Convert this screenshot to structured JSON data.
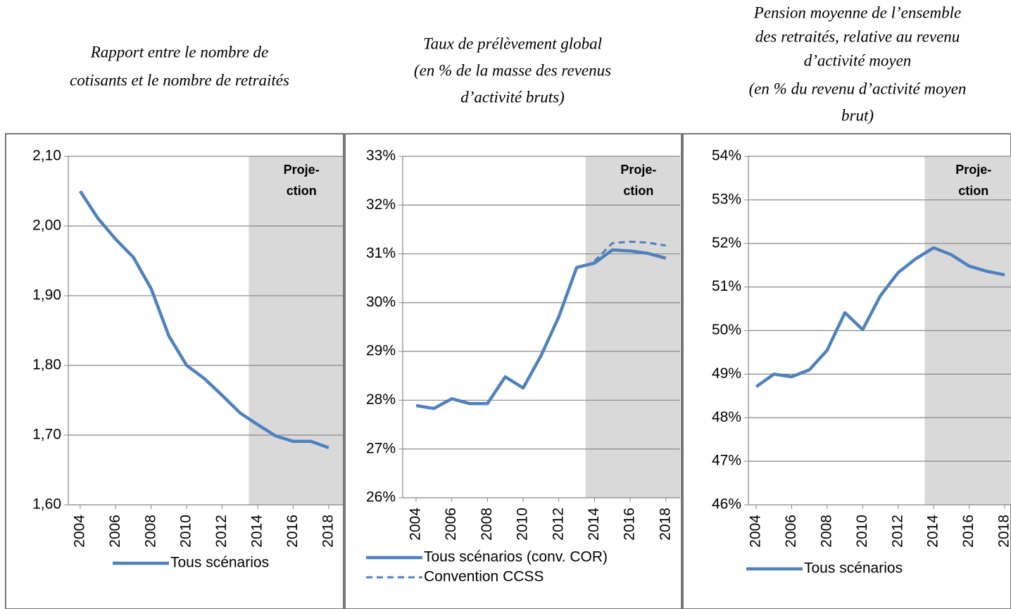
{
  "chart_data": [
    {
      "type": "line",
      "title": [
        "Rapport entre le nombre de",
        "cotisants et le nombre de retraités"
      ],
      "x": [
        2004,
        2005,
        2006,
        2007,
        2008,
        2009,
        2010,
        2011,
        2012,
        2013,
        2014,
        2015,
        2016,
        2017,
        2018
      ],
      "xlim": [
        2003.33,
        2018.8
      ],
      "xticks": [
        2004,
        2006,
        2008,
        2010,
        2012,
        2014,
        2016,
        2018
      ],
      "ylim": [
        1.6,
        2.1
      ],
      "yticks": [
        {
          "value": 1.6,
          "label": "1,60"
        },
        {
          "value": 1.7,
          "label": "1,70"
        },
        {
          "value": 1.8,
          "label": "1,80"
        },
        {
          "value": 1.9,
          "label": "1,90"
        },
        {
          "value": 2.0,
          "label": "2,00"
        },
        {
          "value": 2.1,
          "label": "2,10"
        }
      ],
      "grid": true,
      "annotation": {
        "text": [
          "Proje-",
          "ction"
        ],
        "shade_start": 2013.5
      },
      "series": [
        {
          "name": "Tous scénarios",
          "color": "#4f81bd",
          "dash": false,
          "values": [
            2.05,
            2.011,
            1.981,
            1.955,
            1.91,
            1.842,
            1.8,
            1.781,
            1.757,
            1.732,
            1.715,
            1.699,
            1.691,
            1.691,
            1.682
          ]
        }
      ]
    },
    {
      "type": "line",
      "title": [
        "Taux de prélèvement global",
        "(en % de la masse des revenus",
        "d’activité bruts)"
      ],
      "x": [
        2004,
        2005,
        2006,
        2007,
        2008,
        2009,
        2010,
        2011,
        2012,
        2013,
        2014,
        2015,
        2016,
        2017,
        2018
      ],
      "xlim": [
        2003.25,
        2018.8
      ],
      "xticks": [
        2004,
        2006,
        2008,
        2010,
        2012,
        2014,
        2016,
        2018
      ],
      "ylim": [
        26,
        33
      ],
      "yticks": [
        {
          "value": 26,
          "label": "26%"
        },
        {
          "value": 27,
          "label": "27%"
        },
        {
          "value": 28,
          "label": "28%"
        },
        {
          "value": 29,
          "label": "29%"
        },
        {
          "value": 30,
          "label": "30%"
        },
        {
          "value": 31,
          "label": "31%"
        },
        {
          "value": 32,
          "label": "32%"
        },
        {
          "value": 33,
          "label": "33%"
        }
      ],
      "grid": true,
      "annotation": {
        "text": [
          "Proje-",
          "ction"
        ],
        "shade_start": 2013.5
      },
      "series": [
        {
          "name": "Tous scénarios (conv. COR)",
          "color": "#4f81bd",
          "dash": false,
          "values": [
            27.89,
            27.83,
            28.03,
            27.93,
            27.93,
            28.48,
            28.25,
            28.91,
            29.71,
            30.72,
            30.81,
            31.08,
            31.06,
            31.01,
            30.91
          ]
        },
        {
          "name": "Convention CCSS",
          "color": "#4f81bd",
          "dash": true,
          "values": [
            null,
            null,
            null,
            null,
            null,
            null,
            null,
            null,
            null,
            null,
            30.85,
            31.22,
            31.25,
            31.23,
            31.17
          ]
        }
      ]
    },
    {
      "type": "line",
      "title": [
        "Pension moyenne de l’ensemble",
        "des retraités, relative au revenu",
        "d’activité moyen",
        "(en % du revenu d’activité moyen",
        "brut)"
      ],
      "x": [
        2004,
        2005,
        2006,
        2007,
        2008,
        2009,
        2010,
        2011,
        2012,
        2013,
        2014,
        2015,
        2016,
        2017,
        2018
      ],
      "xlim": [
        2003.56,
        2018.36
      ],
      "xticks": [
        2004,
        2006,
        2008,
        2010,
        2012,
        2014,
        2016,
        2018
      ],
      "ylim": [
        46,
        54
      ],
      "yticks": [
        {
          "value": 46,
          "label": "46%"
        },
        {
          "value": 47,
          "label": "47%"
        },
        {
          "value": 48,
          "label": "48%"
        },
        {
          "value": 49,
          "label": "49%"
        },
        {
          "value": 50,
          "label": "50%"
        },
        {
          "value": 51,
          "label": "51%"
        },
        {
          "value": 52,
          "label": "52%"
        },
        {
          "value": 53,
          "label": "53%"
        },
        {
          "value": 54,
          "label": "54%"
        }
      ],
      "grid": true,
      "annotation": {
        "text": [
          "Proje-",
          "ction"
        ],
        "shade_start": 2013.5
      },
      "series": [
        {
          "name": "Tous scénarios",
          "color": "#4f81bd",
          "dash": false,
          "values": [
            48.71,
            49.0,
            48.94,
            49.1,
            49.55,
            50.41,
            50.02,
            50.8,
            51.33,
            51.65,
            51.9,
            51.74,
            51.48,
            51.36,
            51.28
          ]
        }
      ]
    }
  ]
}
